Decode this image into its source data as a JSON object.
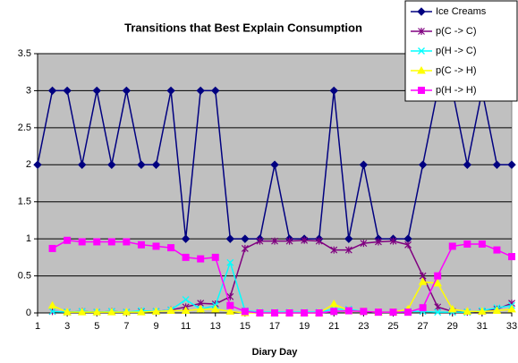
{
  "chart_data": {
    "type": "line",
    "title": "Transitions that Best Explain Consumption",
    "x_label": "Diary Day",
    "x": [
      1,
      2,
      3,
      4,
      5,
      6,
      7,
      8,
      9,
      10,
      11,
      12,
      13,
      14,
      15,
      16,
      17,
      18,
      19,
      20,
      21,
      22,
      23,
      24,
      25,
      26,
      27,
      28,
      29,
      30,
      31,
      32,
      33
    ],
    "xlim": [
      1,
      33
    ],
    "xticks": [
      1,
      3,
      5,
      7,
      9,
      11,
      13,
      15,
      17,
      19,
      21,
      23,
      25,
      27,
      29,
      31,
      33
    ],
    "ylim": [
      0,
      3.5
    ],
    "yticks": [
      0,
      0.5,
      1,
      1.5,
      2,
      2.5,
      3,
      3.5
    ],
    "grid": true,
    "legend": "top-right",
    "series": [
      {
        "name": "Ice Creams",
        "color": "#000080",
        "marker": "diamond",
        "values": [
          2,
          3,
          3,
          2,
          3,
          2,
          3,
          2,
          2,
          3,
          1,
          3,
          3,
          1,
          1,
          1,
          2,
          1,
          1,
          1,
          3,
          1,
          2,
          1,
          1,
          1,
          2,
          3,
          3,
          2,
          3,
          2,
          2
        ]
      },
      {
        "name": "p(C -> C)",
        "color": "#800080",
        "marker": "star",
        "values": [
          null,
          0.02,
          0.01,
          0.02,
          0.01,
          0.02,
          0.01,
          0.02,
          0.02,
          0.04,
          0.08,
          0.13,
          0.12,
          0.22,
          0.87,
          0.97,
          0.97,
          0.97,
          0.98,
          0.97,
          0.85,
          0.85,
          0.94,
          0.96,
          0.97,
          0.92,
          0.5,
          0.08,
          0.02,
          0.01,
          0.02,
          0.05,
          0.13
        ]
      },
      {
        "name": "p(H -> C)",
        "color": "#00ffff",
        "marker": "x",
        "values": [
          null,
          0.02,
          0.01,
          0.02,
          0.01,
          0.02,
          0.01,
          0.03,
          0.02,
          0.04,
          0.18,
          0.05,
          0.1,
          0.68,
          0.03,
          0.01,
          0.01,
          0.01,
          0.01,
          0.01,
          0.05,
          0.05,
          0.02,
          0.01,
          0.01,
          0.02,
          0.02,
          0.01,
          0.01,
          0.01,
          0.03,
          0.07,
          0.1
        ]
      },
      {
        "name": "p(C -> H)",
        "color": "#ffff00",
        "marker": "triangle",
        "values": [
          null,
          0.1,
          0.01,
          0.01,
          0.01,
          0.01,
          0.01,
          0.01,
          0.02,
          0.03,
          0.03,
          0.05,
          0.05,
          0.02,
          0,
          0,
          0,
          0,
          0,
          0,
          0.12,
          0.03,
          0.02,
          0.01,
          0.01,
          0.05,
          0.42,
          0.4,
          0.05,
          0.02,
          0.02,
          0.03,
          0.05
        ]
      },
      {
        "name": "p(H -> H)",
        "color": "#ff00ff",
        "marker": "square",
        "values": [
          null,
          0.87,
          0.98,
          0.96,
          0.96,
          0.96,
          0.96,
          0.92,
          0.9,
          0.88,
          0.75,
          0.73,
          0.75,
          0.1,
          0.02,
          0,
          0,
          0,
          0,
          0,
          0.02,
          0.03,
          0.02,
          0.01,
          0.01,
          0.01,
          0.07,
          0.5,
          0.9,
          0.93,
          0.93,
          0.85,
          0.76
        ]
      }
    ]
  }
}
